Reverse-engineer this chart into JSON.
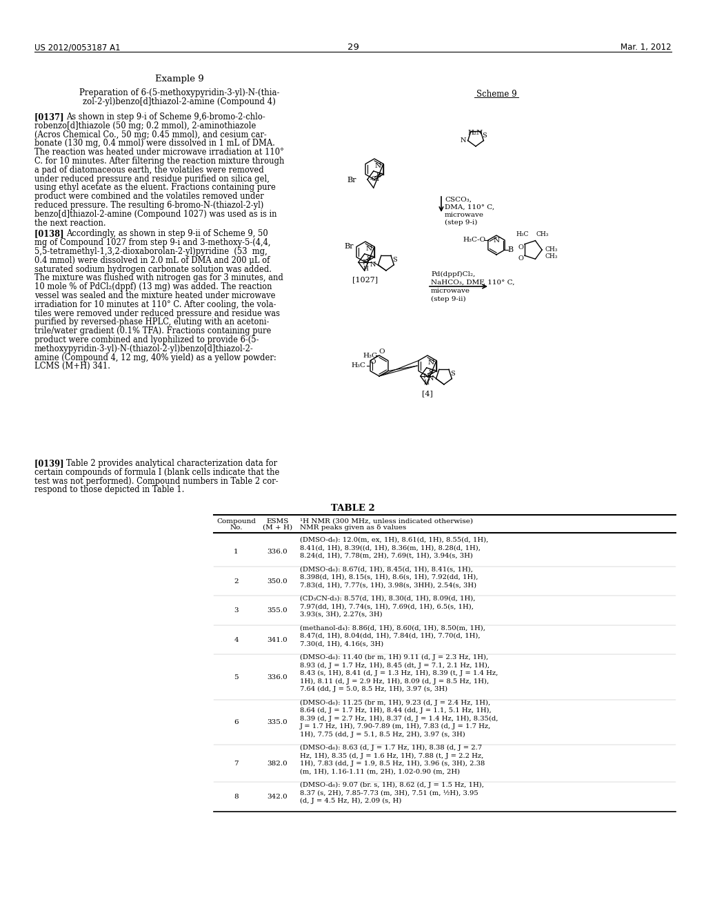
{
  "page_header_left": "US 2012/0053187 A1",
  "page_header_right": "Mar. 1, 2012",
  "page_number": "29",
  "p137_lines": [
    "[0137] As shown in step 9-i of Scheme 9,6-bromo-2-chlo-",
    "robenzo[d]thiazole (50 mg; 0.2 mmol), 2-aminothiazole",
    "(Acros Chemical Co., 50 mg; 0.45 mmol), and cesium car-",
    "bonate (130 mg, 0.4 mmol) were dissolved in 1 mL of DMA.",
    "The reaction was heated under microwave irradiation at 110°",
    "C. for 10 minutes. After filtering the reaction mixture through",
    "a pad of diatomaceous earth, the volatiles were removed",
    "under reduced pressure and residue purified on silica gel,",
    "using ethyl acetate as the eluent. Fractions containing pure",
    "product were combined and the volatiles removed under",
    "reduced pressure. The resulting 6-bromo-N-(thiazol-2-yl)",
    "benzo[d]thiazol-2-amine (Compound 1027) was used as is in",
    "the next reaction."
  ],
  "p138_lines": [
    "[0138] Accordingly, as shown in step 9-ii of Scheme 9, 50",
    "mg of Compound 1027 from step 9-i and 3-methoxy-5-(4,4,",
    "5,5-tetramethyl-1,3,2-dioxaborolan-2-yl)pyridine  (53  mg,",
    "0.4 mmol) were dissolved in 2.0 mL of DMA and 200 μL of",
    "saturated sodium hydrogen carbonate solution was added.",
    "The mixture was flushed with nitrogen gas for 3 minutes, and",
    "10 mole % of PdCl₂(dppf) (13 mg) was added. The reaction",
    "vessel was sealed and the mixture heated under microwave",
    "irradiation for 10 minutes at 110° C. After cooling, the vola-",
    "tiles were removed under reduced pressure and residue was",
    "purified by reversed-phase HPLC, eluting with an acetoni-",
    "trile/water gradient (0.1% TFA). Fractions containing pure",
    "product were combined and lyophilized to provide 6-(5-",
    "methoxypyridin-3-yl)-N-(thiazol-2-yl)benzo[d]thiazol-2-",
    "amine (Compound 4, 12 mg, 40% yield) as a yellow powder:",
    "LCMS (M+H) 341."
  ],
  "p139_lines": [
    "[0139] Table 2 provides analytical characterization data for",
    "certain compounds of formula I (blank cells indicate that the",
    "test was not performed). Compound numbers in Table 2 cor-",
    "respond to those depicted in Table 1."
  ],
  "table_rows": [
    {
      "compound": "1",
      "esms": "336.0",
      "nmr": "(DMSO-d₆): 12.0(m, ex, 1H), 8.61(d, 1H), 8.55(d, 1H),\n8.41(d, 1H), 8.39((d, 1H), 8.36(m, 1H), 8.28(d, 1H),\n8.24(d, 1H), 7.78(m, 2H), 7.69(t, 1H), 3.94(s, 3H)"
    },
    {
      "compound": "2",
      "esms": "350.0",
      "nmr": "(DMSO-d₆): 8.67(d, 1H), 8.45(d, 1H), 8.41(s, 1H),\n8.398(d, 1H), 8.15(s, 1H), 8.6(s, 1H), 7.92(dd, 1H),\n7.83(d, 1H), 7.77(s, 1H), 3.98(s, 3HH), 2.54(s, 3H)"
    },
    {
      "compound": "3",
      "esms": "355.0",
      "nmr": "(CD₃CN-d₃): 8.57(d, 1H), 8.30(d, 1H), 8.09(d, 1H),\n7.97(dd, 1H), 7.74(s, 1H), 7.69(d, 1H), 6.5(s, 1H),\n3.93(s, 3H), 2.27(s, 3H)"
    },
    {
      "compound": "4",
      "esms": "341.0",
      "nmr": "(methanol-d₄): 8.86(d, 1H), 8.60(d, 1H), 8.50(m, 1H),\n8.47(d, 1H), 8.04(dd, 1H), 7.84(d, 1H), 7.70(d, 1H),\n7.30(d, 1H), 4.16(s, 3H)"
    },
    {
      "compound": "5",
      "esms": "336.0",
      "nmr": "(DMSO-d₆): 11.40 (br m, 1H) 9.11 (d, J = 2.3 Hz, 1H),\n8.93 (d, J = 1.7 Hz, 1H), 8.45 (dt, J = 7.1, 2.1 Hz, 1H),\n8.43 (s, 1H), 8.41 (d, J = 1.3 Hz, 1H), 8.39 (t, J = 1.4 Hz,\n1H), 8.11 (d, J = 2.9 Hz, 1H), 8.09 (d, J = 8.5 Hz, 1H),\n7.64 (dd, J = 5.0, 8.5 Hz, 1H), 3.97 (s, 3H)"
    },
    {
      "compound": "6",
      "esms": "335.0",
      "nmr": "(DMSO-d₆): 11.25 (br m, 1H), 9.23 (d, J = 2.4 Hz, 1H),\n8.64 (d, J = 1.7 Hz, 1H), 8.44 (dd, J = 1.1, 5.1 Hz, 1H),\n8.39 (d, J = 2.7 Hz, 1H), 8.37 (d, J = 1.4 Hz, 1H), 8.35(d,\nJ = 1.7 Hz, 1H), 7.90-7.89 (m, 1H), 7.83 (d, J = 1.7 Hz,\n1H), 7.75 (dd, J = 5.1, 8.5 Hz, 2H), 3.97 (s, 3H)"
    },
    {
      "compound": "7",
      "esms": "382.0",
      "nmr": "(DMSO-d₆): 8.63 (d, J = 1.7 Hz, 1H), 8.38 (d, J = 2.7\nHz, 1H), 8.35 (d, J = 1.6 Hz, 1H), 7.88 (t, J = 2.2 Hz,\n1H), 7.83 (dd, J = 1.9, 8.5 Hz, 1H), 3.96 (s, 3H), 2.38\n(m, 1H), 1.16-1.11 (m, 2H), 1.02-0.90 (m, 2H)"
    },
    {
      "compound": "8",
      "esms": "342.0",
      "nmr": "(DMSO-d₆): 9.07 (br. s, 1H), 8.62 (d, J = 1.5 Hz, 1H),\n8.37 (s, 2H), 7.85-7.73 (m, 3H), 7.51 (m, ½H), 3.95\n(d, J = 4.5 Hz, H), 2.09 (s, H)"
    }
  ]
}
